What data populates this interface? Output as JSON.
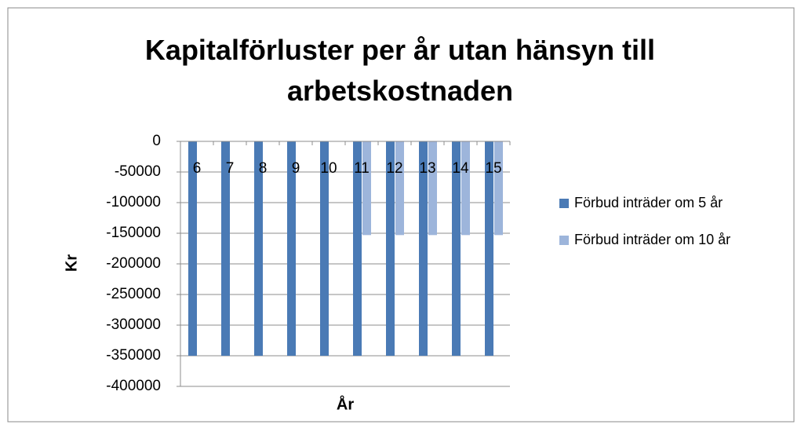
{
  "chart_data": {
    "type": "bar",
    "title": "Kapitalförluster per år utan hänsyn till arbetskostnaden",
    "x_label": "År",
    "y_label": "Kr",
    "categories": [
      "6",
      "7",
      "8",
      "9",
      "10",
      "11",
      "12",
      "13",
      "14",
      "15"
    ],
    "series": [
      {
        "name": "Förbud inträder om 5 år",
        "color": "#4a7ab5",
        "values": [
          -350000,
          -350000,
          -350000,
          -350000,
          -350000,
          -350000,
          -350000,
          -350000,
          -350000,
          -350000
        ]
      },
      {
        "name": "Förbud inträder om 10 år",
        "color": "#9db5db",
        "values": [
          0,
          0,
          0,
          0,
          0,
          -153000,
          -153000,
          -153000,
          -153000,
          -153000
        ]
      }
    ],
    "ylim": [
      -400000,
      0
    ],
    "yticks": [
      0,
      -50000,
      -100000,
      -150000,
      -200000,
      -250000,
      -300000,
      -350000,
      -400000
    ],
    "grid": true,
    "legend": "right"
  }
}
